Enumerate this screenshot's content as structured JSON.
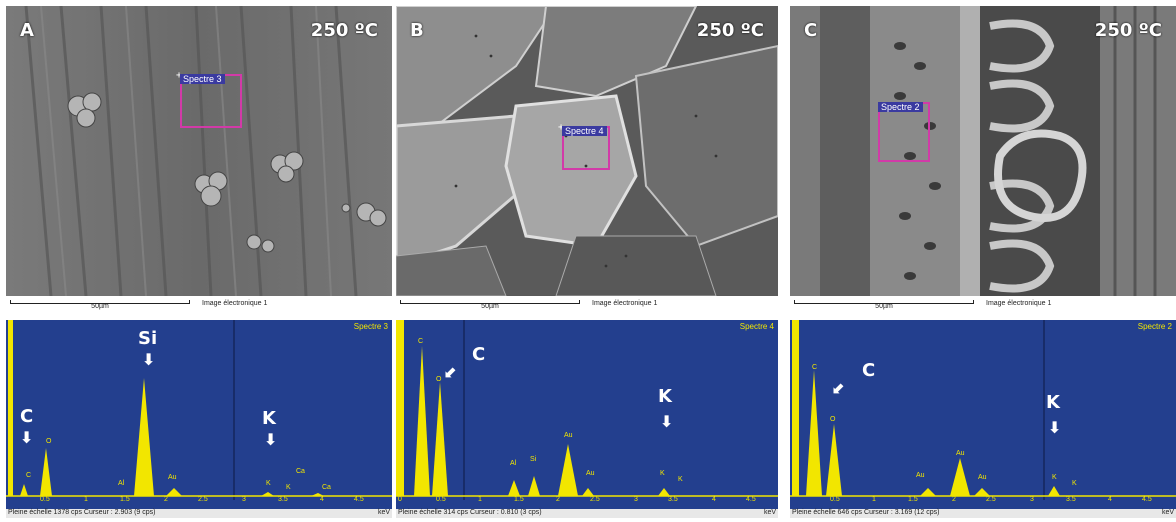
{
  "panels": [
    {
      "letter": "A",
      "temperature": "250 ºC",
      "spectrum_tag": "Spectre 3",
      "scale": "50µm",
      "image_label": "Image électronique 1",
      "eds": {
        "spectrum_name": "Spectre 3",
        "full_scale": "Pleine échelle 1378 cps",
        "cursor": "Curseur : 2.903 (9 cps)",
        "unit": "keV",
        "annotations": [
          {
            "text": "C"
          },
          {
            "text": "Si"
          },
          {
            "text": "K"
          }
        ],
        "peak_labels": [
          "C",
          "O",
          "Al",
          "Au",
          "K",
          "K",
          "Ca",
          "Ca"
        ],
        "ticks": [
          "0.5",
          "1",
          "1.5",
          "2",
          "2.5",
          "3",
          "3.5",
          "4",
          "4.5"
        ]
      }
    },
    {
      "letter": "B",
      "temperature": "250 ºC",
      "spectrum_tag": "Spectre 4",
      "scale": "50µm",
      "image_label": "Image électronique 1",
      "eds": {
        "spectrum_name": "Spectre 4",
        "full_scale": "Pleine échelle 314 cps",
        "cursor": "Curseur : 0.810 (3 cps)",
        "unit": "keV",
        "annotations": [
          {
            "text": "C"
          },
          {
            "text": "K"
          }
        ],
        "peak_labels": [
          "C",
          "O",
          "Al",
          "Si",
          "Au",
          "Au",
          "K",
          "K"
        ],
        "ticks": [
          "0",
          "0.5",
          "1",
          "1.5",
          "2",
          "2.5",
          "3",
          "3.5",
          "4",
          "4.5"
        ]
      }
    },
    {
      "letter": "C",
      "temperature": "250 ºC",
      "spectrum_tag": "Spectre 2",
      "scale": "50µm",
      "image_label": "Image électronique 1",
      "eds": {
        "spectrum_name": "Spectre 2",
        "full_scale": "Pleine échelle 646 cps",
        "cursor": "Curseur : 3.169 (12 cps)",
        "unit": "keV",
        "annotations": [
          {
            "text": "C"
          },
          {
            "text": "K"
          }
        ],
        "peak_labels": [
          "C",
          "O",
          "Au",
          "Au",
          "Au",
          "K",
          "K"
        ],
        "ticks": [
          "0.5",
          "1",
          "1.5",
          "2",
          "2.5",
          "3",
          "3.5",
          "4",
          "4.5"
        ]
      }
    }
  ],
  "colors": {
    "eds_background": "#233f8e",
    "eds_peaks": "#f2e600",
    "selection_box": "#d23aa8",
    "annotation": "#ffffff"
  }
}
